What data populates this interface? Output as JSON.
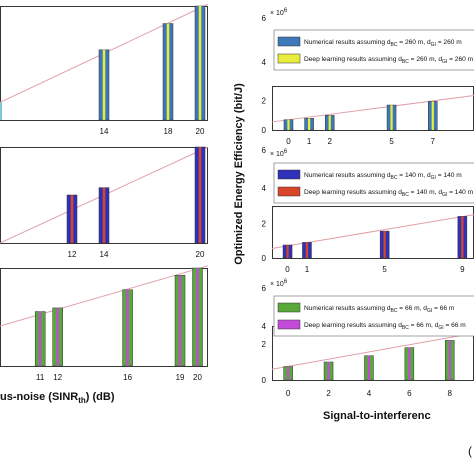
{
  "figure": {
    "left_xlabel": "us-noise (SINR",
    "left_xlabel_sub": "th",
    "left_xlabel_tail": ") (dB)",
    "right_ylabel": "Optimized Energy Efficiency (bit/J)",
    "right_xlabel": "Signal-to-interferenc",
    "corner_label": "("
  },
  "colors": {
    "line": "#e0a0a8",
    "axes": "#222222",
    "bar_blue": "#3d78b8",
    "bar_yellow": "#e8ec3a",
    "bar_navy": "#2f32b8",
    "bar_red": "#d8462a",
    "bar_green": "#58a83a",
    "bar_magenta": "#c44ad8",
    "left_edge_bar": "#7ecad6"
  },
  "chart_data": [
    {
      "type": "bar",
      "panel": "left-1",
      "x": [
        14,
        18,
        20
      ],
      "tick_labels": [
        "14",
        "18",
        "20"
      ],
      "series": [
        {
          "values": [
            0.8,
            1.1,
            1.3
          ]
        },
        {
          "values": [
            0.8,
            1.1,
            1.3
          ]
        }
      ],
      "bar_colors": [
        "bar_blue",
        "bar_yellow"
      ],
      "xlim": [
        7.5,
        20.5
      ],
      "ylim": [
        0,
        1.3
      ],
      "trend_line": [
        [
          7.5,
          0.2
        ],
        [
          20.5,
          1.32
        ]
      ],
      "left_edge_bar": true
    },
    {
      "type": "bar",
      "panel": "left-2",
      "x": [
        12,
        14,
        20
      ],
      "tick_labels": [
        "12",
        "14",
        "20"
      ],
      "series": [
        {
          "values": [
            0.65,
            0.75,
            1.3
          ]
        },
        {
          "values": [
            0.65,
            0.75,
            1.3
          ]
        }
      ],
      "bar_colors": [
        "bar_navy",
        "bar_red"
      ],
      "xlim": [
        7.5,
        20.5
      ],
      "ylim": [
        0,
        1.3
      ],
      "trend_line": [
        [
          7.5,
          0.0
        ],
        [
          20.5,
          1.3
        ]
      ]
    },
    {
      "type": "bar",
      "panel": "left-3",
      "x": [
        11,
        12,
        16,
        19,
        20
      ],
      "tick_labels": [
        "11",
        "12",
        "16",
        "19",
        "20"
      ],
      "series": [
        {
          "values": [
            0.75,
            0.8,
            1.05,
            1.25,
            1.35
          ]
        },
        {
          "values": [
            0.75,
            0.8,
            1.05,
            1.25,
            1.35
          ]
        }
      ],
      "bar_colors": [
        "bar_green",
        "bar_magenta"
      ],
      "xlim": [
        8.7,
        20.6
      ],
      "ylim": [
        0,
        1.35
      ],
      "trend_line": [
        [
          8.7,
          0.55
        ],
        [
          20.6,
          1.38
        ]
      ]
    },
    {
      "type": "bar",
      "panel": "right-1",
      "exponent": "6",
      "y_ticks": [
        "0",
        "2",
        "4",
        "6"
      ],
      "x": [
        0,
        1,
        2,
        5,
        7
      ],
      "tick_labels": [
        "0",
        "1",
        "2",
        "5",
        "7"
      ],
      "series": [
        {
          "name": "Numerical results assuming d",
          "name_sub": "BC",
          "name_tail": " = 260 m, d",
          "name_sub2": "GI",
          "name_tail2": " = 260 m",
          "values": [
            0.7,
            0.8,
            1.0,
            1.7,
            1.95
          ]
        },
        {
          "name": "Deep learning results assuming d",
          "name_sub": "BC",
          "name_tail": " = 260 m, d",
          "name_sub2": "GI",
          "name_tail2": " = 260 m",
          "values": [
            0.7,
            0.8,
            1.0,
            1.7,
            1.95
          ]
        }
      ],
      "bar_colors": [
        "bar_blue",
        "bar_yellow"
      ],
      "xlim": [
        -0.8,
        9.0
      ],
      "ylim": [
        0,
        6
      ],
      "ylim_visible": [
        0,
        3
      ],
      "trend_line": [
        [
          -0.8,
          0.55
        ],
        [
          9.0,
          2.35
        ]
      ]
    },
    {
      "type": "bar",
      "panel": "right-2",
      "exponent": "6",
      "y_ticks": [
        "0",
        "2",
        "4",
        "6"
      ],
      "x": [
        0,
        1,
        5,
        9
      ],
      "tick_labels": [
        "0",
        "1",
        "5",
        "9"
      ],
      "series": [
        {
          "name": "Numerical results assuming d",
          "name_sub": "BC",
          "name_tail": " = 140 m, d",
          "name_sub2": "GI",
          "name_tail2": " = 140 m",
          "values": [
            0.75,
            0.9,
            1.55,
            2.4
          ]
        },
        {
          "name": "Deep learning results assuming d",
          "name_sub": "BC",
          "name_tail": " = 140 m, d",
          "name_sub2": "GI",
          "name_tail2": " = 140 m",
          "values": [
            0.75,
            0.9,
            1.55,
            2.4
          ]
        }
      ],
      "bar_colors": [
        "bar_navy",
        "bar_red"
      ],
      "xlim": [
        -0.8,
        9.6
      ],
      "ylim": [
        0,
        6
      ],
      "ylim_visible": [
        0,
        3
      ],
      "trend_line": [
        [
          -0.8,
          0.55
        ],
        [
          9.6,
          2.5
        ]
      ]
    },
    {
      "type": "bar",
      "panel": "right-3",
      "exponent": "6",
      "y_ticks": [
        "0",
        "2",
        "4",
        "6"
      ],
      "x": [
        0,
        2,
        4,
        6,
        8
      ],
      "tick_labels": [
        "0",
        "2",
        "4",
        "6",
        "8"
      ],
      "series": [
        {
          "name": "Numerical results assuming d",
          "name_sub": "BC",
          "name_tail": " = 66 m, d",
          "name_sub2": "GI",
          "name_tail2": " = 66 m",
          "values": [
            0.75,
            1.0,
            1.35,
            1.8,
            2.2
          ]
        },
        {
          "name": "Deep learning results assuming d",
          "name_sub": "BC",
          "name_tail": " = 66 m, d",
          "name_sub2": "GI",
          "name_tail2": " = 66 m",
          "values": [
            0.75,
            1.0,
            1.35,
            1.8,
            2.2
          ]
        }
      ],
      "bar_colors": [
        "bar_green",
        "bar_magenta"
      ],
      "xlim": [
        -0.8,
        9.2
      ],
      "ylim": [
        0,
        6
      ],
      "ylim_visible": [
        0,
        3
      ],
      "trend_line": [
        [
          -0.8,
          0.6
        ],
        [
          9.2,
          2.6
        ]
      ]
    }
  ]
}
